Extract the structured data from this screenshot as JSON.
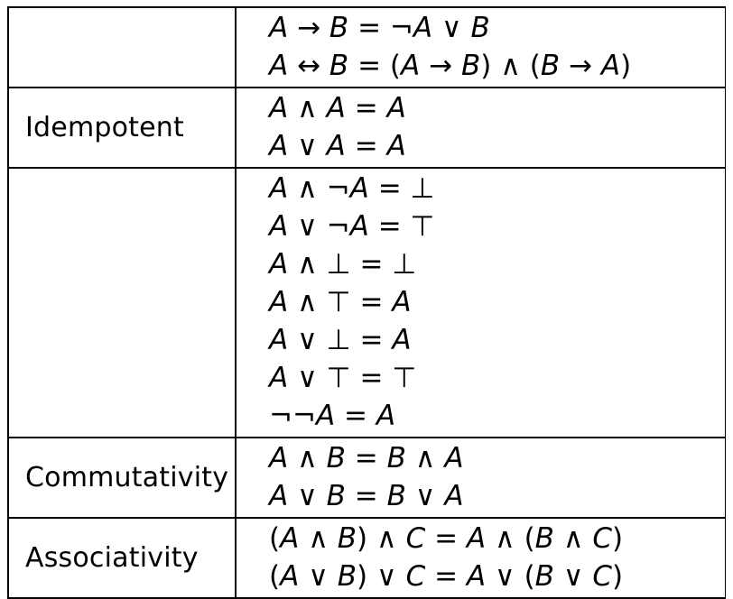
{
  "sections": [
    {
      "name": "",
      "laws": [
        "A → B = ¬A ∨ B",
        "A ↔ B = (A → B)  ∧  (B → A)"
      ]
    },
    {
      "name": "Idempotent",
      "laws": [
        "A ∧ A = A",
        "A ∨ A = A"
      ]
    },
    {
      "name": "",
      "laws": [
        "A ∧ ¬A = ⊥",
        "A ∨ ¬A = ⊤",
        "A ∧ ⊥ = ⊥",
        "A ∧ ⊤ = A",
        "A ∨ ⊥ = A",
        "A ∨ ⊤ = ⊤",
        "¬¬A = A"
      ]
    },
    {
      "name": "Commutativity",
      "laws": [
        "A ∧ B = B ∧ A",
        "A ∨ B = B ∨ A"
      ]
    },
    {
      "name": "Associativity",
      "laws": [
        "(A ∧ B) ∧ C = A ∧ (B ∧ C)",
        "(A ∨ B) ∨ C = A ∨ (B ∨ C)"
      ]
    }
  ]
}
